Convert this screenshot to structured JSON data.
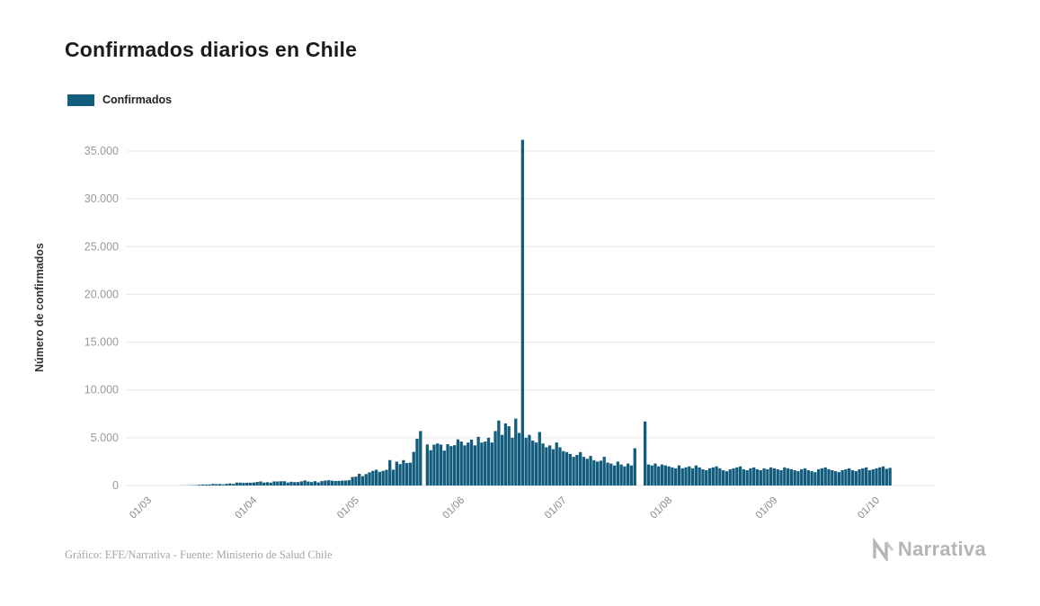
{
  "chart_data": {
    "type": "bar",
    "title": "Confirmados diarios en Chile",
    "legend_label": "Confirmados",
    "ylabel": "Número de confirmados",
    "xlabel": "",
    "bar_color": "#125c7d",
    "grid": true,
    "legend_position": "top-left",
    "ylim": [
      0,
      37200
    ],
    "yticks": [
      {
        "value": 0,
        "label": "0"
      },
      {
        "value": 5000,
        "label": "5.000"
      },
      {
        "value": 10000,
        "label": "10.000"
      },
      {
        "value": 15000,
        "label": "15.000"
      },
      {
        "value": 20000,
        "label": "20.000"
      },
      {
        "value": 25000,
        "label": "25.000"
      },
      {
        "value": 30000,
        "label": "30.000"
      },
      {
        "value": 35000,
        "label": "35.000"
      }
    ],
    "xticks": [
      {
        "label": "01/03",
        "day": 0
      },
      {
        "label": "01/04",
        "day": 31
      },
      {
        "label": "01/05",
        "day": 61
      },
      {
        "label": "01/06",
        "day": 92
      },
      {
        "label": "01/07",
        "day": 122
      },
      {
        "label": "01/08",
        "day": 153
      },
      {
        "label": "01/09",
        "day": 184
      },
      {
        "label": "01/10",
        "day": 214
      }
    ],
    "series": [
      {
        "name": "Confirmados",
        "start_date": "01/03",
        "frequency": "daily",
        "values": [
          1,
          0,
          3,
          0,
          1,
          2,
          3,
          0,
          4,
          4,
          10,
          12,
          18,
          31,
          43,
          81,
          105,
          103,
          110,
          164,
          142,
          154,
          114,
          176,
          220,
          164,
          304,
          299,
          271,
          289,
          293,
          312,
          373,
          424,
          310,
          344,
          301,
          430,
          426,
          445,
          447,
          312,
          392,
          356,
          358,
          435,
          534,
          419,
          358,
          456,
          325,
          464,
          516,
          552,
          505,
          473,
          482,
          509,
          520,
          552,
          888,
          930,
          1228,
          980,
          1197,
          1373,
          1533,
          1658,
          1427,
          1533,
          1647,
          2660,
          1658,
          2502,
          2247,
          2659,
          2353,
          2389,
          3520,
          4895,
          5700,
          0,
          4300,
          3700,
          4276,
          4400,
          4278,
          3649,
          4328,
          4120,
          4220,
          4830,
          4600,
          4200,
          4500,
          4800,
          4200,
          5100,
          4500,
          4600,
          5000,
          4500,
          5700,
          6800,
          5300,
          6500,
          6200,
          5000,
          7000,
          5500,
          36179,
          5000,
          5300,
          4700,
          4500,
          5600,
          4400,
          4000,
          4200,
          3800,
          4500,
          4000,
          3600,
          3500,
          3300,
          3000,
          3200,
          3500,
          3000,
          2800,
          3100,
          2650,
          2500,
          2600,
          3000,
          2400,
          2300,
          2100,
          2500,
          2200,
          2000,
          2300,
          2100,
          3900,
          0,
          0,
          6700,
          2200,
          2100,
          2300,
          2000,
          2200,
          2100,
          2000,
          1900,
          1800,
          2100,
          1800,
          1900,
          2000,
          1800,
          2100,
          1900,
          1700,
          1600,
          1800,
          1900,
          2000,
          1800,
          1600,
          1500,
          1700,
          1800,
          1900,
          2000,
          1700,
          1600,
          1800,
          1900,
          1700,
          1600,
          1800,
          1700,
          1900,
          1800,
          1700,
          1600,
          1900,
          1800,
          1700,
          1600,
          1500,
          1700,
          1800,
          1600,
          1500,
          1400,
          1700,
          1800,
          1900,
          1700,
          1600,
          1500,
          1400,
          1600,
          1700,
          1800,
          1600,
          1500,
          1700,
          1800,
          1900,
          1600,
          1700,
          1800,
          1900,
          2000,
          1750,
          1850
        ]
      }
    ]
  },
  "footer": {
    "credit": "Gráfico: EFE/Narrativa - Fuente: Ministerio de Salud Chile",
    "logo_text": "Narrativa"
  }
}
